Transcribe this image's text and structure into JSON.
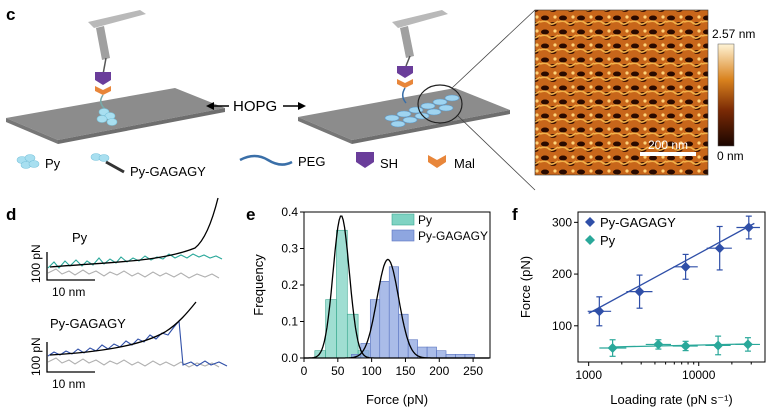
{
  "panel_labels": {
    "c": "c",
    "d": "d",
    "e": "e",
    "f": "f"
  },
  "schematic": {
    "center_label": "HOPG",
    "legend": {
      "py": "Py",
      "py_gagagy": "Py-GAGAGY",
      "peg": "PEG",
      "sh": "SH",
      "mal": "Mal"
    },
    "colors": {
      "surface": "#8c8c8c",
      "sh": "#6a3d9a",
      "mal": "#e8863a",
      "py": "#a8dff0",
      "peg": "#3a6fa8"
    }
  },
  "afm": {
    "scale_max": "2.57 nm",
    "scale_min": "0 nm",
    "scale_bar": "200 nm"
  },
  "traces": {
    "top_label": "Py",
    "bottom_label": "Py-GAGAGY",
    "y_scale": "100 pN",
    "x_scale": "10 nm",
    "colors": {
      "top": "#2aa89a",
      "bottom": "#2f4fa8",
      "baseline": "#b0b0b0",
      "fit": "#000000"
    }
  },
  "chart_data": [
    {
      "type": "bar",
      "panel": "e",
      "xlabel": "Force (pN)",
      "ylabel": "Frequency",
      "xlim": [
        0,
        275
      ],
      "ylim": [
        0,
        0.4
      ],
      "xticks": [
        0,
        50,
        100,
        150,
        200,
        250
      ],
      "yticks": [
        0.0,
        0.1,
        0.2,
        0.3,
        0.4
      ],
      "legend_position": "top-right",
      "series": [
        {
          "name": "Py",
          "color": "#7fd3c3",
          "bin_width": 16,
          "bins_start": [
            16,
            32,
            48,
            64,
            80
          ],
          "values": [
            0.02,
            0.16,
            0.35,
            0.12,
            0.02
          ],
          "fit_peak": 55,
          "fit_sigma": 12,
          "fit_height": 0.39
        },
        {
          "name": "Py-GAGAGY",
          "color": "#8ea6e0",
          "bin_width": 14,
          "bins_start": [
            70,
            84,
            98,
            112,
            126,
            140,
            154,
            168,
            182,
            196,
            210,
            224,
            238
          ],
          "values": [
            0.01,
            0.04,
            0.16,
            0.21,
            0.25,
            0.12,
            0.05,
            0.03,
            0.03,
            0.02,
            0.01,
            0.01,
            0.01
          ],
          "fit_peak": 124,
          "fit_sigma": 16,
          "fit_height": 0.27
        }
      ]
    },
    {
      "type": "scatter",
      "panel": "f",
      "xlabel": "Loading rate (pN s⁻¹)",
      "ylabel": "Force (pN)",
      "xscale": "log",
      "xlim": [
        800,
        40000
      ],
      "ylim": [
        30,
        320
      ],
      "xticks": [
        1000,
        10000
      ],
      "yticks": [
        100,
        200,
        300
      ],
      "legend_position": "top-left",
      "series": [
        {
          "name": "Py-GAGAGY",
          "color": "#2f4fa8",
          "marker": "diamond",
          "points": [
            {
              "x": 1250,
              "y": 128,
              "xerr": [
                980,
                1600
              ],
              "yerr": 28
            },
            {
              "x": 2900,
              "y": 166,
              "xerr": [
                2200,
                3800
              ],
              "yerr": 32
            },
            {
              "x": 7600,
              "y": 214,
              "xerr": [
                5900,
                9800
              ],
              "yerr": 24
            },
            {
              "x": 15500,
              "y": 250,
              "xerr": [
                11800,
                20000
              ],
              "yerr": 42
            },
            {
              "x": 28500,
              "y": 290,
              "xerr": [
                22000,
                36000
              ],
              "yerr": 22
            }
          ],
          "fit": [
            [
              1000,
              124
            ],
            [
              32000,
              298
            ]
          ]
        },
        {
          "name": "Py",
          "color": "#2aa89a",
          "marker": "diamond",
          "points": [
            {
              "x": 1650,
              "y": 57,
              "xerr": [
                1250,
                2200
              ],
              "yerr": 16
            },
            {
              "x": 4300,
              "y": 64,
              "xerr": [
                3300,
                5600
              ],
              "yerr": 9
            },
            {
              "x": 7600,
              "y": 61,
              "xerr": [
                5800,
                9800
              ],
              "yerr": 9
            },
            {
              "x": 15000,
              "y": 62,
              "xerr": [
                11500,
                19500
              ],
              "yerr": 18
            },
            {
              "x": 28000,
              "y": 64,
              "xerr": [
                21500,
                36000
              ],
              "yerr": 13
            }
          ],
          "fit": [
            [
              1600,
              59
            ],
            [
              30000,
              65
            ]
          ]
        }
      ]
    }
  ]
}
